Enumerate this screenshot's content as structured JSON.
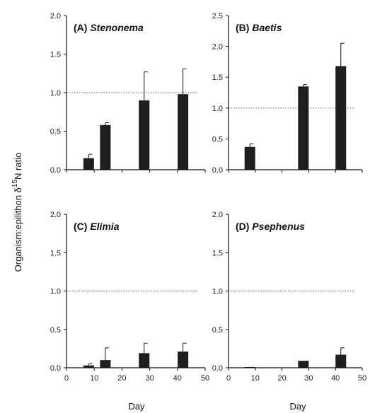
{
  "figure": {
    "ylabel_prefix": "Organism:epilithon δ",
    "ylabel_sup": "15",
    "ylabel_suffix": "N ratio",
    "xlabel": "Day"
  },
  "chart_data": [
    {
      "type": "bar",
      "panel": "top-left",
      "label_prefix": "(A) ",
      "label_name": "Stenonema",
      "x": [
        8,
        14,
        28,
        42
      ],
      "values": [
        0.15,
        0.58,
        0.9,
        0.98
      ],
      "errors": [
        0.05,
        0.03,
        0.37,
        0.33
      ],
      "xlim": [
        0,
        50
      ],
      "ylim": [
        0,
        2.0
      ],
      "xticks": [
        "0",
        "10",
        "20",
        "30",
        "40",
        "50"
      ],
      "yticks": [
        "0.0",
        "0.5",
        "1.0",
        "1.5",
        "2.0"
      ],
      "reference_line": 1.0,
      "bar_color": "#1e1e1e",
      "show_xticklabels": false
    },
    {
      "type": "bar",
      "panel": "top-right",
      "label_prefix": "(B) ",
      "label_name": "Baetis",
      "x": [
        8,
        28,
        42
      ],
      "values": [
        0.37,
        1.35,
        1.68
      ],
      "errors": [
        0.05,
        0.03,
        0.37
      ],
      "xlim": [
        0,
        50
      ],
      "ylim": [
        0,
        2.5
      ],
      "xticks": [
        "0",
        "10",
        "20",
        "30",
        "40",
        "50"
      ],
      "yticks": [
        "0.0",
        "0.5",
        "1.0",
        "1.5",
        "2.0",
        "2.5"
      ],
      "reference_line": 1.0,
      "bar_color": "#1e1e1e",
      "show_xticklabels": false
    },
    {
      "type": "bar",
      "panel": "bottom-left",
      "label_prefix": "(C) ",
      "label_name": "Elimia",
      "x": [
        8,
        14,
        28,
        42
      ],
      "values": [
        0.03,
        0.1,
        0.19,
        0.21
      ],
      "errors": [
        0.02,
        0.16,
        0.13,
        0.11
      ],
      "xlim": [
        0,
        50
      ],
      "ylim": [
        0,
        2.0
      ],
      "xticks": [
        "0",
        "10",
        "20",
        "30",
        "40",
        "50"
      ],
      "yticks": [
        "0.0",
        "0.5",
        "1.0",
        "1.5",
        "2.0"
      ],
      "reference_line": 1.0,
      "bar_color": "#1e1e1e",
      "show_xticklabels": true
    },
    {
      "type": "bar",
      "panel": "bottom-right",
      "label_prefix": "(D) ",
      "label_name": "Psephenus",
      "x": [
        8,
        28,
        42
      ],
      "values": [
        0.01,
        0.09,
        0.17
      ],
      "errors": [
        0.0,
        0.0,
        0.09
      ],
      "xlim": [
        0,
        50
      ],
      "ylim": [
        0,
        2.0
      ],
      "xticks": [
        "0",
        "10",
        "20",
        "30",
        "40",
        "50"
      ],
      "yticks": [
        "0.0",
        "0.5",
        "1.0",
        "1.5",
        "2.0"
      ],
      "reference_line": 1.0,
      "bar_color": "#1e1e1e",
      "show_xticklabels": true
    }
  ]
}
